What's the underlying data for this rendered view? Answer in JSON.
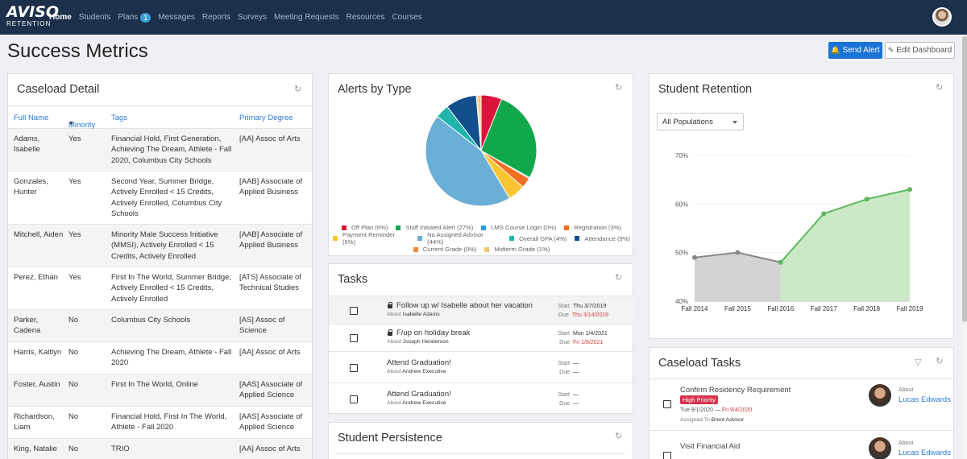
{
  "brand": {
    "line1": "AVISO",
    "line2": "RETENTION"
  },
  "nav": [
    {
      "label": "Home",
      "active": true
    },
    {
      "label": "Students"
    },
    {
      "label": "Plans",
      "badge": "1"
    },
    {
      "label": "Messages"
    },
    {
      "label": "Reports"
    },
    {
      "label": "Surveys"
    },
    {
      "label": "Meeting Requests"
    },
    {
      "label": "Resources"
    },
    {
      "label": "Courses"
    }
  ],
  "page": {
    "title": "Success Metrics",
    "send_alert": "Send Alert",
    "edit_dashboard": "Edit Dashboard"
  },
  "caseload": {
    "title": "Caseload Detail",
    "columns": {
      "name": "Full Name",
      "minority": "Minority",
      "tags": "Tags",
      "degree": "Primary Degree"
    },
    "rows": [
      {
        "name": "Adams, Isabelle",
        "minority": "Yes",
        "tags": "Financial Hold, First Generation, Achieving The Dream, Athlete - Fall 2020, Columbus City Schools",
        "degree": "[AA] Assoc of Arts"
      },
      {
        "name": "Gonzales, Hunter",
        "minority": "Yes",
        "tags": "Second Year, Summer Bridge, Actively Enrolled < 15 Credits, Actively Enrolled, Columbus City Schools",
        "degree": "[AAB] Associate of Applied Business"
      },
      {
        "name": "Mitchell, Aiden",
        "minority": "Yes",
        "tags": "Minority Male Success Initiative (MMSI), Actively Enrolled < 15 Credits, Actively Enrolled",
        "degree": "[AAB] Associate of Applied Business"
      },
      {
        "name": "Perez, Ethan",
        "minority": "Yes",
        "tags": "First In The World, Summer Bridge, Actively Enrolled < 15 Credits, Actively Enrolled",
        "degree": "[ATS] Associate of Technical Studies"
      },
      {
        "name": "Parker, Cadena",
        "minority": "No",
        "tags": "Columbus City Schools",
        "degree": "[AS] Assoc of Science"
      },
      {
        "name": "Harris, Kaitlyn",
        "minority": "No",
        "tags": "Achieving The Dream, Athlete - Fall 2020",
        "degree": "[AA] Assoc of Arts"
      },
      {
        "name": "Foster, Austin",
        "minority": "No",
        "tags": "First In The World, Online",
        "degree": "[AAS] Associate of Applied Science"
      },
      {
        "name": "Richardson, Liam",
        "minority": "No",
        "tags": "Financial Hold, First In The World, Athlete - Fall 2020",
        "degree": "[AAS] Associate of Applied Science"
      },
      {
        "name": "King, Natalie",
        "minority": "No",
        "tags": "TRIO",
        "degree": "[AA] Assoc of Arts"
      }
    ]
  },
  "alerts": {
    "title": "Alerts by Type",
    "slices": [
      {
        "label": "Off Plan (6%)",
        "value": 6,
        "color": "#dc143c"
      },
      {
        "label": "Staff Initiated Alert (27%)",
        "value": 27,
        "color": "#10a84b"
      },
      {
        "label": "LMS Course Login (0%)",
        "value": 0.3,
        "color": "#2d9bd8"
      },
      {
        "label": "Registration (3%)",
        "value": 3,
        "color": "#f26f21"
      },
      {
        "label": "Payment Reminder (5%)",
        "value": 5,
        "color": "#fbc531"
      },
      {
        "label": "No Assigned Advisor (44%)",
        "value": 44,
        "color": "#6baed6"
      },
      {
        "label": "Overall GPA (4%)",
        "value": 4,
        "color": "#1fb5ac"
      },
      {
        "label": "Attendance (9%)",
        "value": 9,
        "color": "#124f8c"
      },
      {
        "label": "Current Grade (0%)",
        "value": 0.4,
        "color": "#ee8a3b"
      },
      {
        "label": "Midterm Grade (1%)",
        "value": 1,
        "color": "#f4c46e"
      }
    ]
  },
  "tasks": {
    "title": "Tasks",
    "items": [
      {
        "title": "Follow up w/ Isabelle about her vacation",
        "locked": true,
        "about_label": "About",
        "about": "Isabelle Adams",
        "start_label": "Start",
        "start": "Thu 3/7/2019",
        "due_label": "Due",
        "due": "Thu 3/14/2019",
        "due_overdue": true
      },
      {
        "title": "F/up on holiday break",
        "locked": true,
        "about_label": "About",
        "about": "Joseph Henderson",
        "start_label": "Start",
        "start": "Mon 1/4/2021",
        "due_label": "Due",
        "due": "Fri 1/8/2021",
        "due_overdue": true
      },
      {
        "title": "Attend Graduation!",
        "locked": false,
        "about_label": "About",
        "about": "Andrew Executive",
        "start_label": "Start",
        "start": "—",
        "due_label": "Due",
        "due": "—",
        "due_overdue": false
      },
      {
        "title": "Attend Graduation!",
        "locked": false,
        "about_label": "About",
        "about": "Andrew Executive",
        "start_label": "Start",
        "start": "—",
        "due_label": "Due",
        "due": "—",
        "due_overdue": false
      }
    ]
  },
  "persistence": {
    "title": "Student Persistence"
  },
  "retention": {
    "title": "Student Retention",
    "population_select": "All Populations"
  },
  "chart_data": {
    "type": "area",
    "x": [
      "Fall 2014",
      "Fall 2015",
      "Fall 2016",
      "Fall 2017",
      "Fall 2018",
      "Fall 2019"
    ],
    "series": [
      {
        "values": [
          49,
          50,
          48,
          null,
          null,
          null
        ],
        "color": "#888888"
      },
      {
        "values": [
          null,
          null,
          48,
          58,
          61,
          63
        ],
        "color": "#5cb85c"
      }
    ],
    "y_ticks": [
      "40%",
      "50%",
      "60%",
      "70%"
    ],
    "ylim": [
      40,
      70
    ]
  },
  "ctasks": {
    "title": "Caseload Tasks",
    "items": [
      {
        "title": "Confirm Residency Requirement",
        "badge": "High Priority",
        "start": "Tue 9/1/2020",
        "sep": "—",
        "due": "Fri 9/4/2020",
        "assigned_label": "Assigned To",
        "assigned": "Brent Advisor",
        "about_label": "About",
        "user": "Lucas Edwards"
      },
      {
        "title": "Visit Financial Aid",
        "about_label": "About",
        "user": "Lucas Edwards"
      }
    ]
  }
}
